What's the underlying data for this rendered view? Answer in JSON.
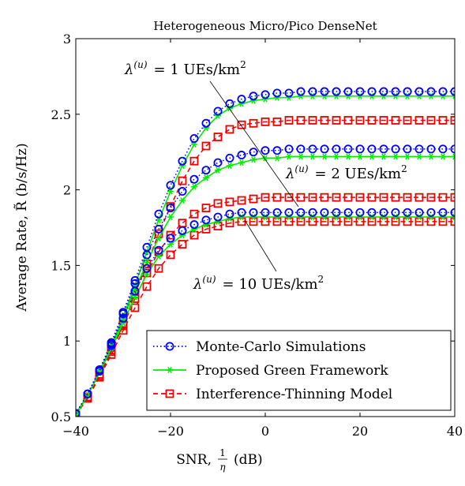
{
  "chart_data": {
    "type": "line",
    "title": "Heterogeneous Micro/Pico DenseNet",
    "xlabel": "SNR, 1/η (dB)",
    "xlabel_main": "SNR,",
    "xlabel_frac_num": "1",
    "xlabel_frac_den": "η",
    "xlabel_unit": "(dB)",
    "ylabel": "Average Rate, R̃ (b/s/Hz)",
    "xlim": [
      -40,
      40
    ],
    "ylim": [
      0.5,
      3
    ],
    "xticks": [
      -40,
      -20,
      0,
      20,
      40
    ],
    "xtick_labels": [
      "−40",
      "−20",
      "0",
      "20",
      "40"
    ],
    "yticks": [
      0.5,
      1,
      1.5,
      2,
      2.5,
      3
    ],
    "ytick_labels": [
      "0.5",
      "1",
      "1.5",
      "2",
      "2.5",
      "3"
    ],
    "grid": false,
    "legend_position": "bottom-right",
    "legend": [
      {
        "name": "Monte-Carlo Simulations",
        "color": "#0000ff",
        "marker": "circle",
        "dash": "dotted"
      },
      {
        "name": "Proposed Green Framework",
        "color": "#00ee00",
        "marker": "asterisk",
        "dash": "solid"
      },
      {
        "name": "Interference-Thinning Model",
        "color": "#ee0000",
        "marker": "square",
        "dash": "dashed"
      }
    ],
    "annotations": [
      {
        "text": "λ(u) = 1 UEs/km2",
        "lambda": "λ",
        "sup": "(u)",
        "eq": "= 1 UEs/km",
        "sup2": "2"
      },
      {
        "text": "λ(u) = 2 UEs/km2",
        "lambda": "λ",
        "sup": "(u)",
        "eq": "= 2 UEs/km",
        "sup2": "2"
      },
      {
        "text": "λ(u) = 10 UEs/km2",
        "lambda": "λ",
        "sup": "(u)",
        "eq": "= 10 UEs/km",
        "sup2": "2"
      }
    ],
    "x": [
      -40,
      -37.5,
      -35,
      -32.5,
      -30,
      -27.5,
      -25,
      -22.5,
      -20,
      -17.5,
      -15,
      -12.5,
      -10,
      -7.5,
      -5,
      -2.5,
      0,
      2.5,
      5,
      7.5,
      10,
      12.5,
      15,
      17.5,
      20,
      22.5,
      25,
      27.5,
      30,
      32.5,
      35,
      37.5,
      40
    ],
    "series": [
      {
        "name": "Monte-Carlo Simulations",
        "group": "λ=1",
        "color": "#0000ff",
        "marker": "circle",
        "dash": "dotted",
        "values": [
          0.52,
          0.65,
          0.81,
          0.99,
          1.19,
          1.4,
          1.62,
          1.84,
          2.03,
          2.19,
          2.34,
          2.44,
          2.52,
          2.57,
          2.6,
          2.62,
          2.63,
          2.64,
          2.64,
          2.65,
          2.65,
          2.65,
          2.65,
          2.65,
          2.65,
          2.65,
          2.65,
          2.65,
          2.65,
          2.65,
          2.65,
          2.65,
          2.65
        ]
      },
      {
        "name": "Proposed Green Framework",
        "group": "λ=1",
        "color": "#00ee00",
        "marker": "asterisk",
        "dash": "solid",
        "values": [
          0.52,
          0.64,
          0.8,
          0.97,
          1.16,
          1.37,
          1.59,
          1.8,
          1.99,
          2.16,
          2.3,
          2.41,
          2.49,
          2.54,
          2.57,
          2.59,
          2.6,
          2.61,
          2.61,
          2.62,
          2.62,
          2.62,
          2.62,
          2.62,
          2.62,
          2.62,
          2.62,
          2.62,
          2.62,
          2.62,
          2.62,
          2.62,
          2.62
        ]
      },
      {
        "name": "Interference-Thinning Model",
        "group": "λ=1",
        "color": "#ee0000",
        "marker": "square",
        "dash": "dashed",
        "values": [
          0.51,
          0.63,
          0.78,
          0.94,
          1.11,
          1.31,
          1.51,
          1.71,
          1.89,
          2.06,
          2.19,
          2.29,
          2.35,
          2.4,
          2.43,
          2.44,
          2.45,
          2.45,
          2.46,
          2.46,
          2.46,
          2.46,
          2.46,
          2.46,
          2.46,
          2.46,
          2.46,
          2.46,
          2.46,
          2.46,
          2.46,
          2.46,
          2.46
        ]
      },
      {
        "name": "Monte-Carlo Simulations",
        "group": "λ=2",
        "color": "#0000ff",
        "marker": "circle",
        "dash": "dotted",
        "values": [
          0.52,
          0.65,
          0.81,
          0.98,
          1.18,
          1.38,
          1.57,
          1.74,
          1.88,
          1.99,
          2.07,
          2.13,
          2.18,
          2.21,
          2.23,
          2.25,
          2.26,
          2.26,
          2.27,
          2.27,
          2.27,
          2.27,
          2.27,
          2.27,
          2.27,
          2.27,
          2.27,
          2.27,
          2.27,
          2.27,
          2.27,
          2.27,
          2.27
        ]
      },
      {
        "name": "Proposed Green Framework",
        "group": "λ=2",
        "color": "#00ee00",
        "marker": "asterisk",
        "dash": "solid",
        "values": [
          0.51,
          0.64,
          0.79,
          0.96,
          1.15,
          1.34,
          1.52,
          1.68,
          1.82,
          1.93,
          2.02,
          2.08,
          2.13,
          2.16,
          2.18,
          2.2,
          2.21,
          2.21,
          2.22,
          2.22,
          2.22,
          2.22,
          2.22,
          2.22,
          2.22,
          2.22,
          2.22,
          2.22,
          2.22,
          2.22,
          2.22,
          2.22,
          2.22
        ]
      },
      {
        "name": "Interference-Thinning Model",
        "group": "λ=2",
        "color": "#ee0000",
        "marker": "square",
        "dash": "dashed",
        "values": [
          0.51,
          0.63,
          0.77,
          0.93,
          1.1,
          1.28,
          1.45,
          1.59,
          1.7,
          1.78,
          1.84,
          1.88,
          1.91,
          1.92,
          1.93,
          1.94,
          1.95,
          1.95,
          1.95,
          1.95,
          1.95,
          1.95,
          1.95,
          1.95,
          1.95,
          1.95,
          1.95,
          1.95,
          1.95,
          1.95,
          1.95,
          1.95,
          1.95
        ]
      },
      {
        "name": "Monte-Carlo Simulations",
        "group": "λ=10",
        "color": "#0000ff",
        "marker": "circle",
        "dash": "dotted",
        "values": [
          0.52,
          0.65,
          0.8,
          0.97,
          1.15,
          1.33,
          1.48,
          1.6,
          1.68,
          1.73,
          1.77,
          1.8,
          1.82,
          1.84,
          1.85,
          1.85,
          1.85,
          1.85,
          1.85,
          1.85,
          1.85,
          1.85,
          1.85,
          1.85,
          1.85,
          1.85,
          1.85,
          1.85,
          1.85,
          1.85,
          1.85,
          1.85,
          1.85
        ]
      },
      {
        "name": "Proposed Green Framework",
        "group": "λ=10",
        "color": "#00ee00",
        "marker": "asterisk",
        "dash": "solid",
        "values": [
          0.51,
          0.64,
          0.79,
          0.95,
          1.12,
          1.29,
          1.44,
          1.56,
          1.64,
          1.7,
          1.74,
          1.77,
          1.79,
          1.81,
          1.82,
          1.82,
          1.82,
          1.82,
          1.82,
          1.82,
          1.82,
          1.82,
          1.82,
          1.82,
          1.82,
          1.82,
          1.82,
          1.82,
          1.82,
          1.82,
          1.82,
          1.82,
          1.82
        ]
      },
      {
        "name": "Interference-Thinning Model",
        "group": "λ=10",
        "color": "#ee0000",
        "marker": "square",
        "dash": "dashed",
        "values": [
          0.51,
          0.62,
          0.76,
          0.91,
          1.07,
          1.22,
          1.36,
          1.48,
          1.57,
          1.64,
          1.7,
          1.74,
          1.76,
          1.78,
          1.79,
          1.79,
          1.79,
          1.79,
          1.79,
          1.79,
          1.79,
          1.79,
          1.79,
          1.79,
          1.79,
          1.79,
          1.79,
          1.79,
          1.79,
          1.79,
          1.79,
          1.79,
          1.79
        ]
      }
    ]
  }
}
